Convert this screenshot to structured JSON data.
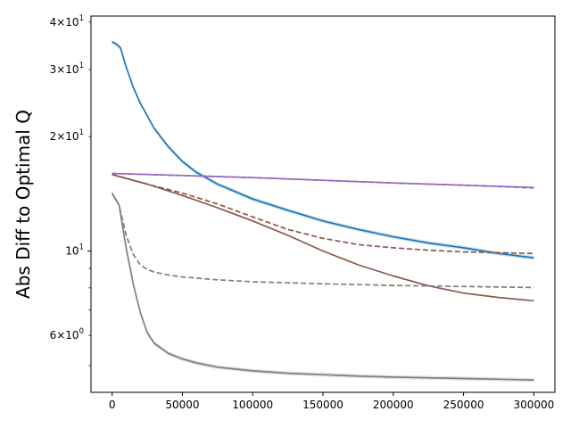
{
  "chart_data": {
    "type": "line",
    "title": "",
    "xlabel": "",
    "ylabel": "Abs Diff to Optimal Q",
    "xscale": "linear",
    "yscale": "log",
    "xlim": [
      -15000,
      315000
    ],
    "ylim": [
      4.25,
      41.5
    ],
    "xticks": [
      0,
      50000,
      100000,
      150000,
      200000,
      250000,
      300000
    ],
    "xtick_labels": [
      "0",
      "50000",
      "100000",
      "150000",
      "200000",
      "250000",
      "300000"
    ],
    "yticks_major": [
      10
    ],
    "ytick_labels_major": [
      "10^1"
    ],
    "yticks_minor": [
      6,
      20,
      30,
      40
    ],
    "ytick_labels_minor": [
      "6×10^0",
      "2×10^1",
      "3×10^1",
      "4×10^1"
    ],
    "minor_unlabeled_yticks": [
      5,
      7,
      8,
      9
    ],
    "grid": false,
    "legend": "none",
    "series": [
      {
        "color": "#1f77b4",
        "linestyle": "solid",
        "band": true,
        "x": [
          0,
          3000,
          6000,
          10000,
          15000,
          20000,
          30000,
          40000,
          50000,
          60000,
          75000,
          100000,
          125000,
          150000,
          175000,
          200000,
          225000,
          250000,
          275000,
          300000
        ],
        "y": [
          35.5,
          35.0,
          34.2,
          30.5,
          27.0,
          24.5,
          21.0,
          18.8,
          17.2,
          16.1,
          15.0,
          13.7,
          12.8,
          12.0,
          11.4,
          10.9,
          10.5,
          10.2,
          9.85,
          9.6
        ]
      },
      {
        "color": "#9467bd",
        "linestyle": "solid",
        "band": false,
        "x": [
          0,
          50000,
          100000,
          150000,
          200000,
          250000,
          300000
        ],
        "y": [
          16.0,
          15.8,
          15.6,
          15.35,
          15.1,
          14.9,
          14.7
        ]
      },
      {
        "color": "#9467bd",
        "linestyle": "dashed",
        "band": false,
        "x": [
          0,
          50000,
          100000,
          150000,
          200000,
          250000,
          300000
        ],
        "y": [
          16.0,
          15.8,
          15.6,
          15.35,
          15.1,
          14.9,
          14.65
        ]
      },
      {
        "color": "#8c564b",
        "linestyle": "solid",
        "band": false,
        "x": [
          0,
          25000,
          50000,
          75000,
          100000,
          125000,
          150000,
          175000,
          200000,
          225000,
          250000,
          275000,
          300000
        ],
        "y": [
          15.9,
          15.0,
          14.0,
          13.0,
          12.0,
          11.0,
          10.0,
          9.2,
          8.6,
          8.1,
          7.75,
          7.55,
          7.4
        ]
      },
      {
        "color": "#8c564b",
        "linestyle": "dashed",
        "band": false,
        "x": [
          0,
          25000,
          50000,
          75000,
          100000,
          125000,
          150000,
          175000,
          200000,
          225000,
          250000,
          275000,
          300000
        ],
        "y": [
          15.9,
          15.0,
          14.2,
          13.3,
          12.3,
          11.4,
          10.8,
          10.4,
          10.2,
          10.05,
          9.95,
          9.9,
          9.85
        ]
      },
      {
        "color": "#7f7f7f",
        "linestyle": "solid",
        "band": true,
        "x": [
          0,
          5000,
          10000,
          15000,
          20000,
          25000,
          30000,
          40000,
          50000,
          60000,
          75000,
          100000,
          125000,
          150000,
          175000,
          200000,
          225000,
          250000,
          275000,
          300000
        ],
        "y": [
          14.2,
          13.2,
          10.2,
          8.2,
          6.9,
          6.1,
          5.72,
          5.38,
          5.2,
          5.08,
          4.95,
          4.84,
          4.77,
          4.73,
          4.69,
          4.66,
          4.64,
          4.62,
          4.6,
          4.58
        ]
      },
      {
        "color": "#7f7f7f",
        "linestyle": "dashed",
        "band": false,
        "x": [
          0,
          5000,
          10000,
          15000,
          20000,
          25000,
          30000,
          40000,
          50000,
          75000,
          100000,
          150000,
          200000,
          250000,
          300000
        ],
        "y": [
          14.2,
          13.2,
          11.0,
          9.8,
          9.2,
          8.95,
          8.8,
          8.65,
          8.55,
          8.4,
          8.3,
          8.2,
          8.12,
          8.07,
          8.02
        ]
      }
    ]
  }
}
